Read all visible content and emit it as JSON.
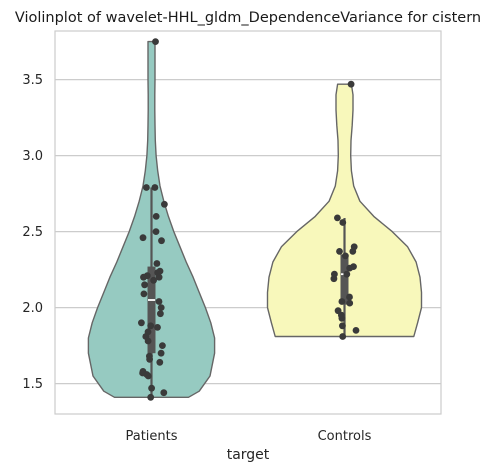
{
  "chart_data": {
    "type": "violin",
    "title": "Violinplot of wavelet-HHL_gldm_DependenceVariance for cistern",
    "xlabel": "target",
    "ylabel": "",
    "ylim": [
      1.3,
      3.82
    ],
    "yticks": [
      1.5,
      2.0,
      2.5,
      3.0,
      3.5
    ],
    "yticklabels": [
      "1.5",
      "2.0",
      "2.5",
      "3.0",
      "3.5"
    ],
    "grid": true,
    "categories": [
      "Patients",
      "Controls"
    ],
    "series": [
      {
        "category": "Patients",
        "color": "#96cac1",
        "min": 1.41,
        "max": 3.75,
        "q1": 1.7,
        "median": 2.05,
        "q3": 2.27,
        "whisker_low": 1.41,
        "whisker_high": 2.79,
        "density_profile": [
          [
            1.41,
            0.48
          ],
          [
            1.45,
            0.62
          ],
          [
            1.55,
            0.76
          ],
          [
            1.7,
            0.82
          ],
          [
            1.8,
            0.82
          ],
          [
            1.9,
            0.77
          ],
          [
            2.0,
            0.7
          ],
          [
            2.1,
            0.62
          ],
          [
            2.2,
            0.54
          ],
          [
            2.3,
            0.45
          ],
          [
            2.4,
            0.37
          ],
          [
            2.5,
            0.29
          ],
          [
            2.6,
            0.22
          ],
          [
            2.7,
            0.16
          ],
          [
            2.8,
            0.11
          ],
          [
            2.9,
            0.08
          ],
          [
            3.0,
            0.06
          ],
          [
            3.1,
            0.05
          ],
          [
            3.2,
            0.045
          ],
          [
            3.3,
            0.043
          ],
          [
            3.4,
            0.043
          ],
          [
            3.5,
            0.045
          ],
          [
            3.6,
            0.045
          ],
          [
            3.7,
            0.045
          ],
          [
            3.75,
            0.045
          ]
        ],
        "points": [
          3.75,
          2.79,
          2.79,
          2.68,
          2.6,
          2.5,
          2.46,
          2.44,
          2.29,
          2.24,
          2.23,
          2.21,
          2.2,
          2.2,
          2.18,
          2.15,
          2.09,
          2.04,
          2.0,
          1.96,
          1.9,
          1.88,
          1.87,
          1.84,
          1.81,
          1.78,
          1.75,
          1.7,
          1.68,
          1.66,
          1.64,
          1.58,
          1.57,
          1.56,
          1.55,
          1.47,
          1.44,
          1.41
        ]
      },
      {
        "category": "Controls",
        "color": "#f8f8bb",
        "min": 1.81,
        "max": 3.47,
        "q1": 2.02,
        "median": 2.22,
        "q3": 2.35,
        "whisker_low": 1.81,
        "whisker_high": 2.59,
        "density_profile": [
          [
            1.81,
            0.9
          ],
          [
            1.9,
            0.95
          ],
          [
            2.0,
            1.0
          ],
          [
            2.1,
            1.0
          ],
          [
            2.2,
            0.98
          ],
          [
            2.3,
            0.93
          ],
          [
            2.4,
            0.82
          ],
          [
            2.5,
            0.62
          ],
          [
            2.6,
            0.38
          ],
          [
            2.7,
            0.2
          ],
          [
            2.8,
            0.12
          ],
          [
            2.9,
            0.09
          ],
          [
            3.0,
            0.08
          ],
          [
            3.1,
            0.085
          ],
          [
            3.2,
            0.1
          ],
          [
            3.3,
            0.11
          ],
          [
            3.4,
            0.11
          ],
          [
            3.47,
            0.09
          ]
        ],
        "points": [
          3.47,
          2.59,
          2.56,
          2.4,
          2.37,
          2.37,
          2.34,
          2.27,
          2.26,
          2.22,
          2.22,
          2.19,
          2.07,
          2.04,
          2.03,
          1.98,
          1.95,
          1.93,
          1.88,
          1.85,
          1.81
        ]
      }
    ]
  }
}
